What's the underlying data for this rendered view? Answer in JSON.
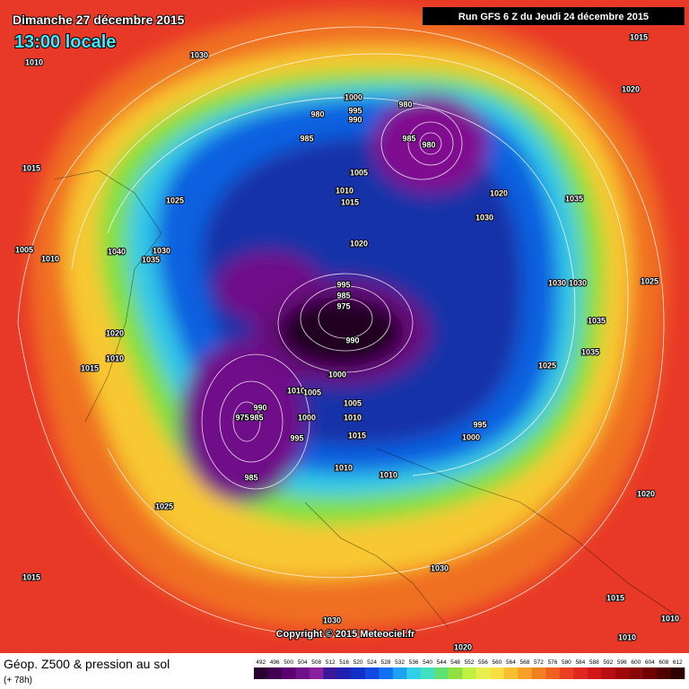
{
  "header": {
    "date": "Dimanche 27 décembre 2015",
    "time": "13:00 locale",
    "run": "Run GFS 6 Z du Jeudi 24 décembre 2015"
  },
  "footer": {
    "title": "Géop. Z500 & pression au sol",
    "lead": "(+ 78h)",
    "copyright": "Copyright © 2015 Meteociel.fr"
  },
  "legend": {
    "ticks": [
      492,
      496,
      500,
      504,
      508,
      512,
      516,
      520,
      524,
      528,
      532,
      536,
      540,
      544,
      548,
      552,
      556,
      560,
      564,
      568,
      572,
      576,
      580,
      584,
      588,
      592,
      596,
      600,
      604,
      608,
      612
    ],
    "colors": [
      "#2a0030",
      "#400050",
      "#5a0070",
      "#701088",
      "#8a20a0",
      "#3a1898",
      "#2020b0",
      "#1030c8",
      "#1048e0",
      "#1070f0",
      "#20a0f0",
      "#30d0e8",
      "#40e0c0",
      "#60e070",
      "#90e040",
      "#c0f040",
      "#e8f050",
      "#f8e040",
      "#f8c030",
      "#f8a028",
      "#f08020",
      "#f06020",
      "#e84020",
      "#e02820",
      "#d01818",
      "#b81010",
      "#a00808",
      "#880808",
      "#700000",
      "#500000",
      "#300000"
    ]
  },
  "isobars": [
    1010,
    1030,
    1015,
    1020,
    1015,
    1025,
    1005,
    1010,
    1040,
    1030,
    1035,
    1020,
    1010,
    1015,
    1000,
    995,
    990,
    980,
    985,
    980,
    985,
    980,
    1005,
    1010,
    1015,
    1020,
    1030,
    1035,
    1020,
    995,
    985,
    975,
    990,
    1030,
    1030,
    1025,
    1035,
    1035,
    1025,
    1000,
    1010,
    1005,
    990,
    975,
    985,
    1000,
    1005,
    1010,
    995,
    1000,
    1015,
    995,
    985,
    1010,
    1010,
    1025,
    1015,
    1030,
    1015,
    1020,
    1030,
    1010,
    1010,
    1020
  ]
}
